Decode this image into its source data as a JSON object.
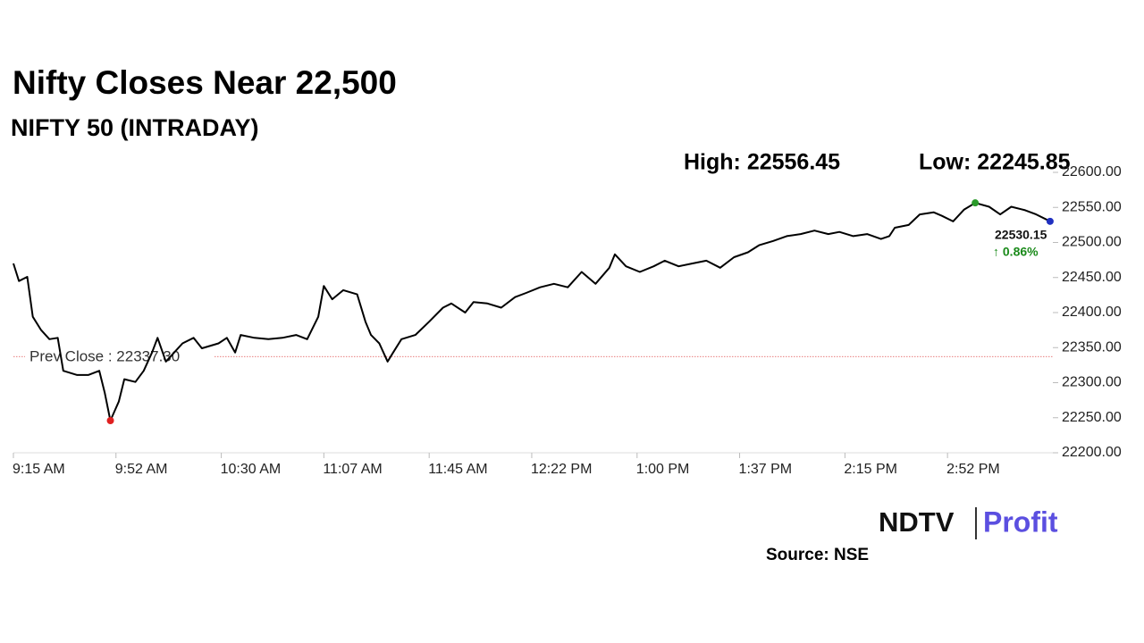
{
  "chart_data": {
    "type": "line",
    "title": "Nifty Closes Near 22,500",
    "subtitle": "NIFTY 50 (INTRADAY)",
    "high": {
      "value": 22556.45,
      "label": "High: 22556.45"
    },
    "low": {
      "value": 22245.85,
      "label": "Low: 22245.85"
    },
    "prev_close": {
      "value": 22337.3,
      "label": "Prev Close : 22337.30"
    },
    "last": {
      "value": 22530.15,
      "label": "22530.15"
    },
    "change": "↑ 0.86%",
    "source": "Source: NSE",
    "logo": {
      "left": "NDTV",
      "right": "Profit"
    },
    "x": [
      0,
      2,
      5,
      7,
      10,
      13,
      16,
      18,
      23,
      27,
      31,
      33,
      35,
      38,
      40,
      44,
      47,
      50,
      52,
      55,
      58,
      61,
      65,
      68,
      74,
      77,
      80,
      82,
      87,
      92,
      97,
      102,
      106,
      110,
      112,
      115,
      119,
      124,
      127,
      129,
      132,
      135,
      137,
      140,
      145,
      150,
      155,
      158,
      163,
      166,
      171,
      176,
      181,
      185,
      190,
      195,
      200,
      205,
      210,
      215,
      217,
      221,
      226,
      231,
      235,
      240,
      245,
      250,
      255,
      260,
      265,
      269,
      274,
      279,
      284,
      289,
      294,
      298,
      303,
      308,
      313,
      316,
      318,
      323,
      327,
      332,
      335,
      339,
      343,
      347,
      352,
      356,
      360,
      365,
      369,
      374
    ],
    "series": [
      {
        "name": "NIFTY 50",
        "color": "#000000",
        "values": [
          22470,
          22445,
          22451,
          22394,
          22375,
          22362,
          22364,
          22317,
          22311,
          22311,
          22317,
          22285,
          22245.85,
          22273,
          22305,
          22301,
          22317,
          22343,
          22364,
          22330,
          22343,
          22356,
          22364,
          22349,
          22356,
          22364,
          22343,
          22368,
          22364,
          22362,
          22364,
          22368,
          22362,
          22394,
          22438,
          22419,
          22432,
          22426,
          22387,
          22368,
          22356,
          22330,
          22343,
          22362,
          22368,
          22387,
          22407,
          22413,
          22400,
          22415,
          22413,
          22407,
          22422,
          22428,
          22436,
          22441,
          22436,
          22458,
          22441,
          22464,
          22483,
          22466,
          22458,
          22466,
          22474,
          22466,
          22470,
          22474,
          22464,
          22479,
          22486,
          22496,
          22502,
          22509,
          22512,
          22517,
          22512,
          22515,
          22509,
          22512,
          22505,
          22509,
          22521,
          22525,
          22540,
          22543,
          22538,
          22530,
          22547,
          22556.45,
          22551,
          22540,
          22551,
          22546,
          22540,
          22530.15
        ]
      }
    ],
    "xlim": [
      0,
      375
    ],
    "xticks": [
      {
        "value": 0,
        "label": "9:15 AM"
      },
      {
        "value": 37,
        "label": "9:52 AM"
      },
      {
        "value": 75,
        "label": "10:30 AM"
      },
      {
        "value": 112,
        "label": "11:07 AM"
      },
      {
        "value": 150,
        "label": "11:45 AM"
      },
      {
        "value": 187,
        "label": "12:22 PM"
      },
      {
        "value": 225,
        "label": "1:00 PM"
      },
      {
        "value": 262,
        "label": "1:37 PM"
      },
      {
        "value": 300,
        "label": "2:15 PM"
      },
      {
        "value": 337,
        "label": "2:52 PM"
      }
    ],
    "ylim": [
      22200,
      22600
    ],
    "yticks": [
      {
        "value": 22200,
        "label": "22200.00"
      },
      {
        "value": 22250,
        "label": "22250.00"
      },
      {
        "value": 22300,
        "label": "22300.00"
      },
      {
        "value": 22350,
        "label": "22350.00"
      },
      {
        "value": 22400,
        "label": "22400.00"
      },
      {
        "value": 22450,
        "label": "22450.00"
      },
      {
        "value": 22500,
        "label": "22500.00"
      },
      {
        "value": 22550,
        "label": "22550.00"
      },
      {
        "value": 22600,
        "label": "22600.00"
      }
    ],
    "grid": false
  }
}
